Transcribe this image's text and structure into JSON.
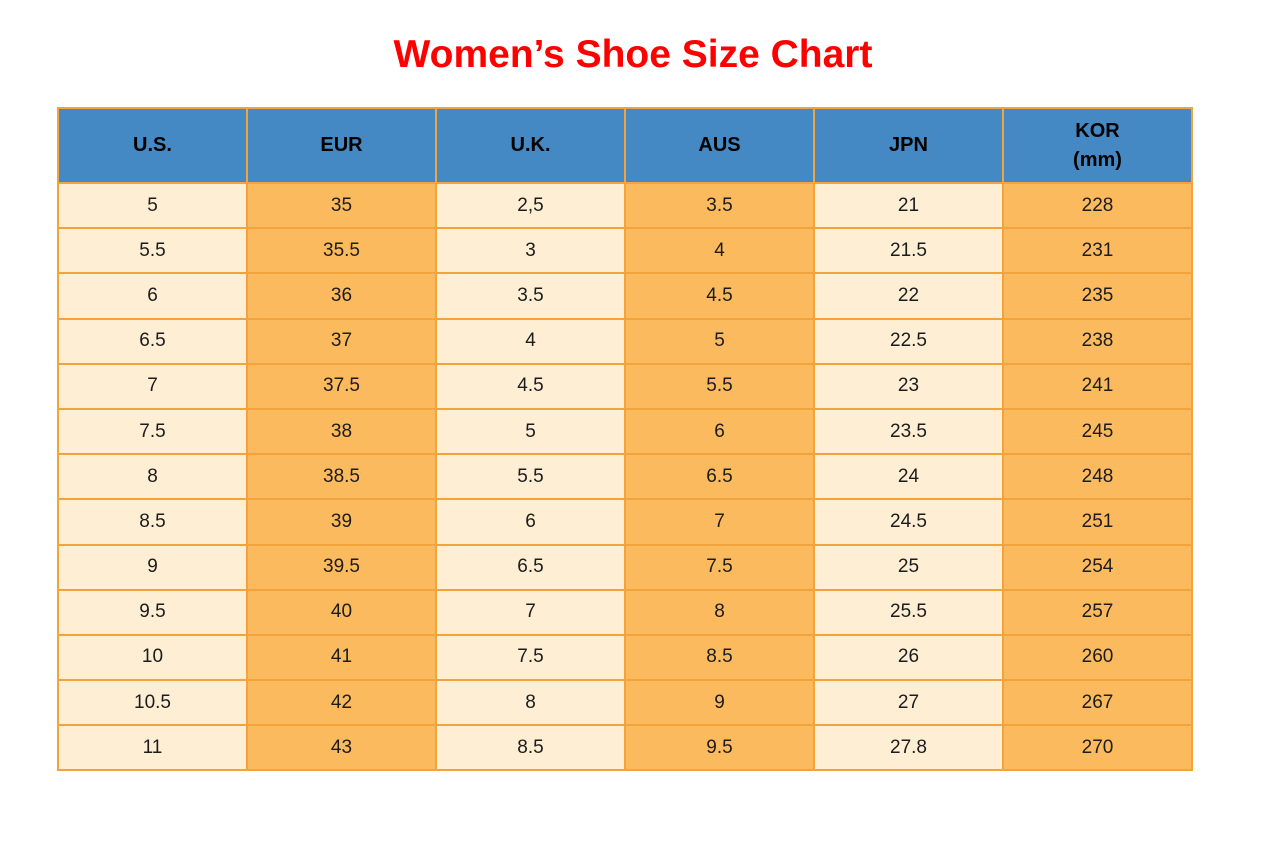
{
  "title": "Women’s Shoe Size Chart",
  "colors": {
    "title_red": "#ff0000",
    "header_bg": "#4489c4",
    "header_text": "#000000",
    "cell_cream": "#fdeed4",
    "cell_orange": "#fbba5e",
    "border_orange": "#f2a33c",
    "body_text": "#1c1c1c",
    "page_bg": "#ffffff"
  },
  "table": {
    "headers": [
      {
        "key": "us",
        "label": "U.S."
      },
      {
        "key": "eur",
        "label": "EUR"
      },
      {
        "key": "uk",
        "label": "U.K."
      },
      {
        "key": "aus",
        "label": "AUS"
      },
      {
        "key": "jpn",
        "label": "JPN"
      },
      {
        "key": "kor",
        "label": "KOR\n(mm)"
      }
    ],
    "rows": [
      [
        "5",
        "35",
        "2,5",
        "3.5",
        "21",
        "228"
      ],
      [
        "5.5",
        "35.5",
        "3",
        "4",
        "21.5",
        "231"
      ],
      [
        "6",
        "36",
        "3.5",
        "4.5",
        "22",
        "235"
      ],
      [
        "6.5",
        "37",
        "4",
        "5",
        "22.5",
        "238"
      ],
      [
        "7",
        "37.5",
        "4.5",
        "5.5",
        "23",
        "241"
      ],
      [
        "7.5",
        "38",
        "5",
        "6",
        "23.5",
        "245"
      ],
      [
        "8",
        "38.5",
        "5.5",
        "6.5",
        "24",
        "248"
      ],
      [
        "8.5",
        "39",
        "6",
        "7",
        "24.5",
        "251"
      ],
      [
        "9",
        "39.5",
        "6.5",
        "7.5",
        "25",
        "254"
      ],
      [
        "9.5",
        "40",
        "7",
        "8",
        "25.5",
        "257"
      ],
      [
        "10",
        "41",
        "7.5",
        "8.5",
        "26",
        "260"
      ],
      [
        "10.5",
        "42",
        "8",
        "9",
        "27",
        "267"
      ],
      [
        "11",
        "43",
        "8.5",
        "9.5",
        "27.8",
        "270"
      ]
    ]
  },
  "chart_data": {
    "type": "table",
    "title": "Women’s Shoe Size Chart",
    "columns": [
      "U.S.",
      "EUR",
      "U.K.",
      "AUS",
      "JPN",
      "KOR (mm)"
    ],
    "rows": [
      [
        "5",
        "35",
        "2,5",
        "3.5",
        "21",
        "228"
      ],
      [
        "5.5",
        "35.5",
        "3",
        "4",
        "21.5",
        "231"
      ],
      [
        "6",
        "36",
        "3.5",
        "4.5",
        "22",
        "235"
      ],
      [
        "6.5",
        "37",
        "4",
        "5",
        "22.5",
        "238"
      ],
      [
        "7",
        "37.5",
        "4.5",
        "5.5",
        "23",
        "241"
      ],
      [
        "7.5",
        "38",
        "5",
        "6",
        "23.5",
        "245"
      ],
      [
        "8",
        "38.5",
        "5.5",
        "6.5",
        "24",
        "248"
      ],
      [
        "8.5",
        "39",
        "6",
        "7",
        "24.5",
        "251"
      ],
      [
        "9",
        "39.5",
        "6.5",
        "7.5",
        "25",
        "254"
      ],
      [
        "9.5",
        "40",
        "7",
        "8",
        "25.5",
        "257"
      ],
      [
        "10",
        "41",
        "7.5",
        "8.5",
        "26",
        "260"
      ],
      [
        "10.5",
        "42",
        "8",
        "9",
        "27",
        "267"
      ],
      [
        "11",
        "43",
        "8.5",
        "9.5",
        "27.8",
        "270"
      ]
    ],
    "layout": {
      "header_position": "top",
      "column_fill_pattern": [
        "cream",
        "orange",
        "cream",
        "orange",
        "cream",
        "orange"
      ]
    }
  }
}
